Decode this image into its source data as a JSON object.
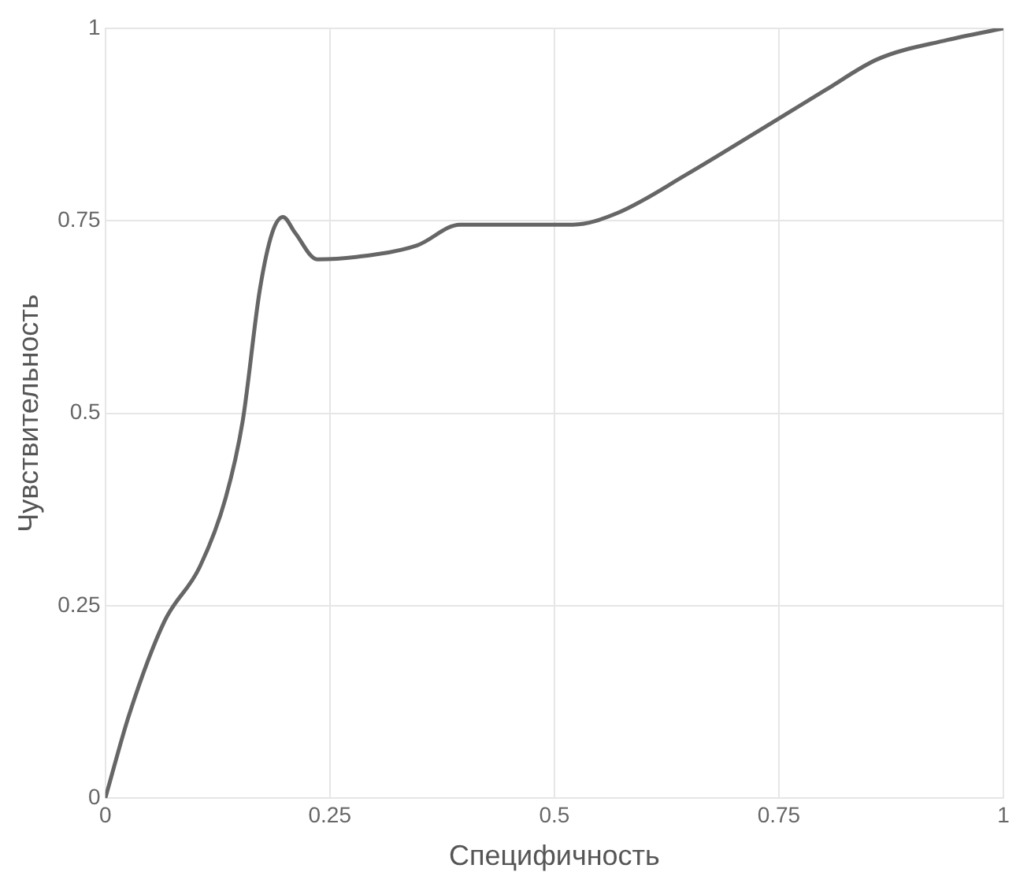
{
  "chart_data": {
    "type": "line",
    "xlabel": "Специфичность",
    "ylabel": "Чувствительность",
    "x": [
      0,
      0.027,
      0.066,
      0.105,
      0.134,
      0.153,
      0.172,
      0.186,
      0.198,
      0.211,
      0.236,
      0.279,
      0.347,
      0.395,
      0.453,
      0.521,
      0.57,
      0.647,
      0.725,
      0.802,
      0.86,
      0.938,
      1
    ],
    "series": [
      {
        "color": "#666666",
        "values": [
          0,
          0.11,
          0.23,
          0.3,
          0.39,
          0.49,
          0.66,
          0.735,
          0.755,
          0.735,
          0.7,
          0.703,
          0.718,
          0.745,
          0.745,
          0.745,
          0.76,
          0.81,
          0.865,
          0.92,
          0.96,
          0.985,
          1
        ]
      }
    ],
    "xlim": [
      0,
      1
    ],
    "ylim": [
      0,
      1
    ],
    "xticks": [
      0,
      0.25,
      0.5,
      0.75,
      1
    ],
    "yticks": [
      0,
      0.25,
      0.5,
      0.75,
      1
    ],
    "grid": true,
    "legend": false,
    "marker": "none",
    "line_style": "solid"
  }
}
